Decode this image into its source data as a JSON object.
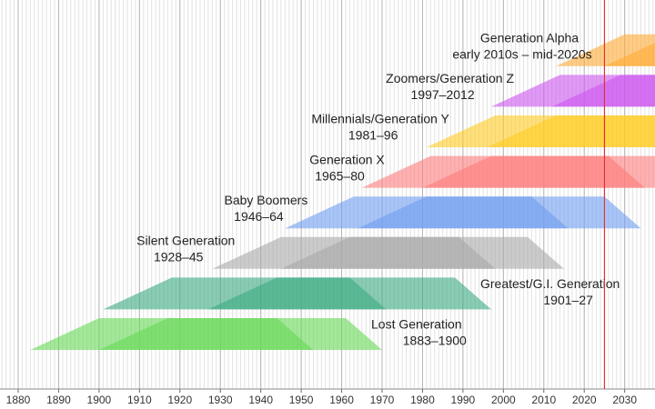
{
  "chart_data": {
    "type": "generation-timeline",
    "xlim": [
      1875.5,
      2037.5
    ],
    "xticks": [
      1880,
      1890,
      1900,
      1910,
      1920,
      1930,
      1940,
      1950,
      1960,
      1970,
      1980,
      1990,
      2000,
      2010,
      2020,
      2030
    ],
    "marker_line": {
      "value": 2025,
      "color": "#dd3333"
    },
    "series": [
      {
        "name": "Lost Generation",
        "range_label": "1883–1900",
        "start": 1883,
        "end": 1900,
        "color": "#66d955",
        "label_position": "right"
      },
      {
        "name": "Greatest/G.I. Generation",
        "range_label": "1901–27",
        "start": 1901,
        "end": 1927,
        "color": "#3aaa80",
        "label_position": "right"
      },
      {
        "name": "Silent Generation",
        "range_label": "1928–45",
        "start": 1928,
        "end": 1945,
        "color": "#a8a8a8",
        "label_position": "left"
      },
      {
        "name": "Baby Boomers",
        "range_label": "1946–64",
        "start": 1946,
        "end": 1964,
        "color": "#6f9cf0",
        "label_position": "left"
      },
      {
        "name": "Generation X",
        "range_label": "1965–80",
        "start": 1965,
        "end": 1980,
        "color": "#ff7c7c",
        "label_position": "left"
      },
      {
        "name": "Millennials/Generation Y",
        "range_label": "1981–96",
        "start": 1981,
        "end": 1996,
        "color": "#ffcc22",
        "label_position": "left"
      },
      {
        "name": "Zoomers/Generation Z",
        "range_label": "1997–2012",
        "start": 1997,
        "end": 2012,
        "color": "#cc55ee",
        "label_position": "left"
      },
      {
        "name": "Generation Alpha",
        "range_label": "early 2010s – mid-2020s",
        "start": 2013,
        "end": 2025,
        "color": "#ffaa33",
        "label_position": "left"
      }
    ]
  }
}
